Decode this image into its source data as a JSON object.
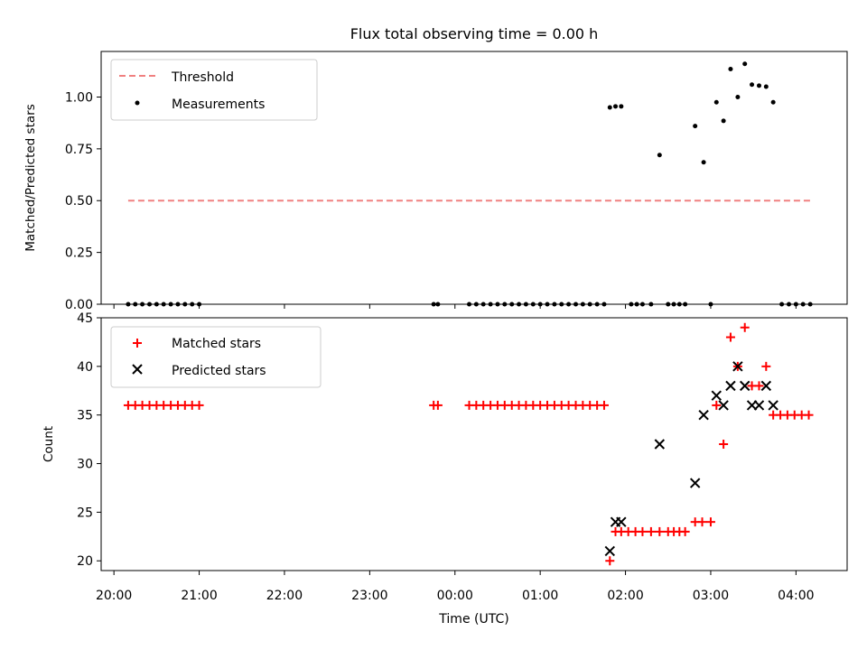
{
  "title": "Flux total observing time = 0.00 h",
  "chart_data": [
    {
      "type": "scatter",
      "panel": "top",
      "title": "Flux total observing time = 0.00 h",
      "xlabel": "",
      "ylabel": "Matched/Predicted stars",
      "xlim_hours": [
        19.85,
        28.6
      ],
      "ylim": [
        0,
        1.22
      ],
      "yticks": [
        0.0,
        0.25,
        0.5,
        0.75,
        1.0
      ],
      "ytick_labels": [
        "0.00",
        "0.25",
        "0.50",
        "0.75",
        "1.00"
      ],
      "legend": {
        "position": "upper-left",
        "entries": [
          "Threshold",
          "Measurements"
        ]
      },
      "threshold": {
        "name": "Threshold",
        "value": 0.5,
        "x_start_hours": 20.167,
        "x_end_hours": 28.2,
        "color": "#f08080",
        "style": "dashed"
      },
      "series": [
        {
          "name": "Measurements",
          "color": "#000000",
          "marker": "dot",
          "x_hours": [
            20.167,
            20.25,
            20.333,
            20.417,
            20.5,
            20.583,
            20.667,
            20.75,
            20.833,
            20.917,
            21.0,
            23.75,
            23.8,
            24.167,
            24.25,
            24.333,
            24.417,
            24.5,
            24.583,
            24.667,
            24.75,
            24.833,
            24.917,
            25.0,
            25.083,
            25.167,
            25.25,
            25.333,
            25.417,
            25.5,
            25.583,
            25.667,
            25.75,
            25.817,
            25.883,
            25.95,
            26.067,
            26.133,
            26.2,
            26.3,
            26.4,
            26.5,
            26.567,
            26.633,
            26.7,
            26.817,
            26.917,
            27.0,
            27.067,
            27.15,
            27.233,
            27.317,
            27.4,
            27.483,
            27.567,
            27.65,
            27.733,
            27.833,
            27.917,
            28.0,
            28.083,
            28.167
          ],
          "y": [
            0,
            0,
            0,
            0,
            0,
            0,
            0,
            0,
            0,
            0,
            0,
            0,
            0,
            0,
            0,
            0,
            0,
            0,
            0,
            0,
            0,
            0,
            0,
            0,
            0,
            0,
            0,
            0,
            0,
            0,
            0,
            0,
            0,
            0.95,
            0.955,
            0.955,
            0,
            0,
            0,
            0,
            0.72,
            0,
            0,
            0,
            0,
            0.86,
            0.685,
            0,
            0.975,
            0.885,
            1.135,
            1.0,
            1.16,
            1.06,
            1.055,
            1.05,
            0.975,
            0,
            0,
            0,
            0,
            0
          ]
        }
      ]
    },
    {
      "type": "scatter",
      "panel": "bottom",
      "xlabel": "Time (UTC)",
      "ylabel": "Count",
      "xlim_hours": [
        19.85,
        28.6
      ],
      "ylim": [
        19,
        45
      ],
      "yticks": [
        20,
        25,
        30,
        35,
        40,
        45
      ],
      "ytick_labels": [
        "20",
        "25",
        "30",
        "35",
        "40",
        "45"
      ],
      "xticks_hours": [
        20,
        21,
        22,
        23,
        24,
        25,
        26,
        27,
        28
      ],
      "xtick_labels": [
        "20:00",
        "21:00",
        "22:00",
        "23:00",
        "00:00",
        "01:00",
        "02:00",
        "03:00",
        "04:00"
      ],
      "legend": {
        "position": "upper-left",
        "entries": [
          "Matched stars",
          "Predicted stars"
        ]
      },
      "series": [
        {
          "name": "Matched stars",
          "color": "#ff0000",
          "marker": "plus",
          "x_hours": [
            20.167,
            20.25,
            20.333,
            20.417,
            20.5,
            20.583,
            20.667,
            20.75,
            20.833,
            20.917,
            21.0,
            23.75,
            23.8,
            24.167,
            24.25,
            24.333,
            24.417,
            24.5,
            24.583,
            24.667,
            24.75,
            24.833,
            24.917,
            25.0,
            25.083,
            25.167,
            25.25,
            25.333,
            25.417,
            25.5,
            25.583,
            25.667,
            25.75,
            25.817,
            25.883,
            25.95,
            26.033,
            26.117,
            26.2,
            26.3,
            26.4,
            26.5,
            26.567,
            26.633,
            26.7,
            26.817,
            26.9,
            27.0,
            27.067,
            27.15,
            27.233,
            27.317,
            27.4,
            27.483,
            27.567,
            27.65,
            27.733,
            27.817,
            27.9,
            27.983,
            28.067,
            28.15
          ],
          "y": [
            36,
            36,
            36,
            36,
            36,
            36,
            36,
            36,
            36,
            36,
            36,
            36,
            36,
            36,
            36,
            36,
            36,
            36,
            36,
            36,
            36,
            36,
            36,
            36,
            36,
            36,
            36,
            36,
            36,
            36,
            36,
            36,
            36,
            20,
            23,
            23,
            23,
            23,
            23,
            23,
            23,
            23,
            23,
            23,
            23,
            24,
            24,
            24,
            36,
            32,
            43,
            40,
            44,
            38,
            38,
            40,
            35,
            35,
            35,
            35,
            35,
            35
          ]
        },
        {
          "name": "Predicted stars",
          "color": "#000000",
          "marker": "x",
          "x_hours": [
            25.817,
            25.883,
            25.95,
            26.4,
            26.817,
            26.917,
            27.067,
            27.15,
            27.233,
            27.317,
            27.4,
            27.483,
            27.567,
            27.65,
            27.733
          ],
          "y": [
            21,
            24,
            24,
            32,
            28,
            35,
            37,
            36,
            38,
            40,
            38,
            36,
            36,
            38,
            36
          ]
        }
      ]
    }
  ]
}
